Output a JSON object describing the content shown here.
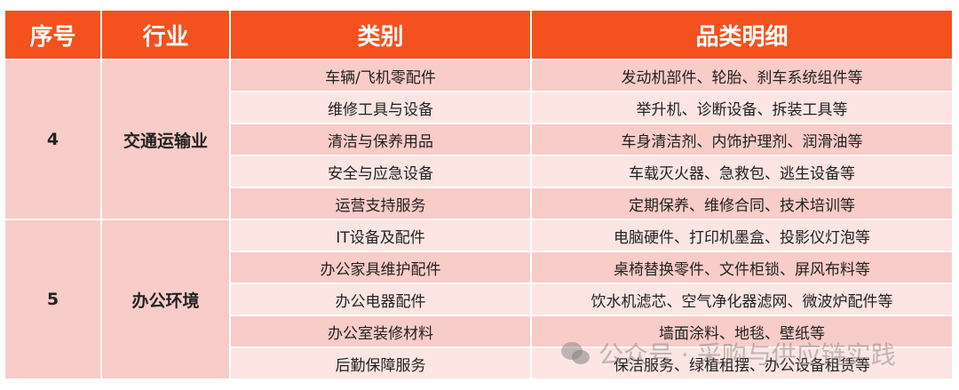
{
  "headers": [
    "序号",
    "行业",
    "类别",
    "品类明细"
  ],
  "groups": [
    {
      "no": "4",
      "industry": "交通运输业",
      "rows": [
        [
          "车辆/飞机零配件",
          "发动机部件、轮胎、刹车系统组件等"
        ],
        [
          "维修工具与设备",
          "举升机、诊断设备、拆装工具等"
        ],
        [
          "清洁与保养用品",
          "车身清洁剂、内饰护理剂、润滑油等"
        ],
        [
          "安全与应急设备",
          "车载灭火器、急救包、逃生设备等"
        ],
        [
          "运营支持服务",
          "定期保养、维修合同、技术培训等"
        ]
      ]
    },
    {
      "no": "5",
      "industry": "办公环境",
      "rows": [
        [
          "IT设备及配件",
          "电脑硬件、打印机墨盒、投影仪灯泡等"
        ],
        [
          "办公家具维护配件",
          "桌椅替换零件、文件柜锁、屏风布料等"
        ],
        [
          "办公电器配件",
          "饮水机滤芯、空气净化器滤网、微波炉配件等"
        ],
        [
          "办公室装修材料",
          "墙面涂料、地毯、壁纸等"
        ],
        [
          "后勤保障服务",
          "保洁服务、绿植租摆、办公设备租赁等"
        ]
      ]
    }
  ],
  "watermark": "公众号 · 采购与供应链实践",
  "colors": {
    "header": "#F4511E",
    "row_dark": "#F8CCC8",
    "row_light": "#FCE5E3"
  }
}
